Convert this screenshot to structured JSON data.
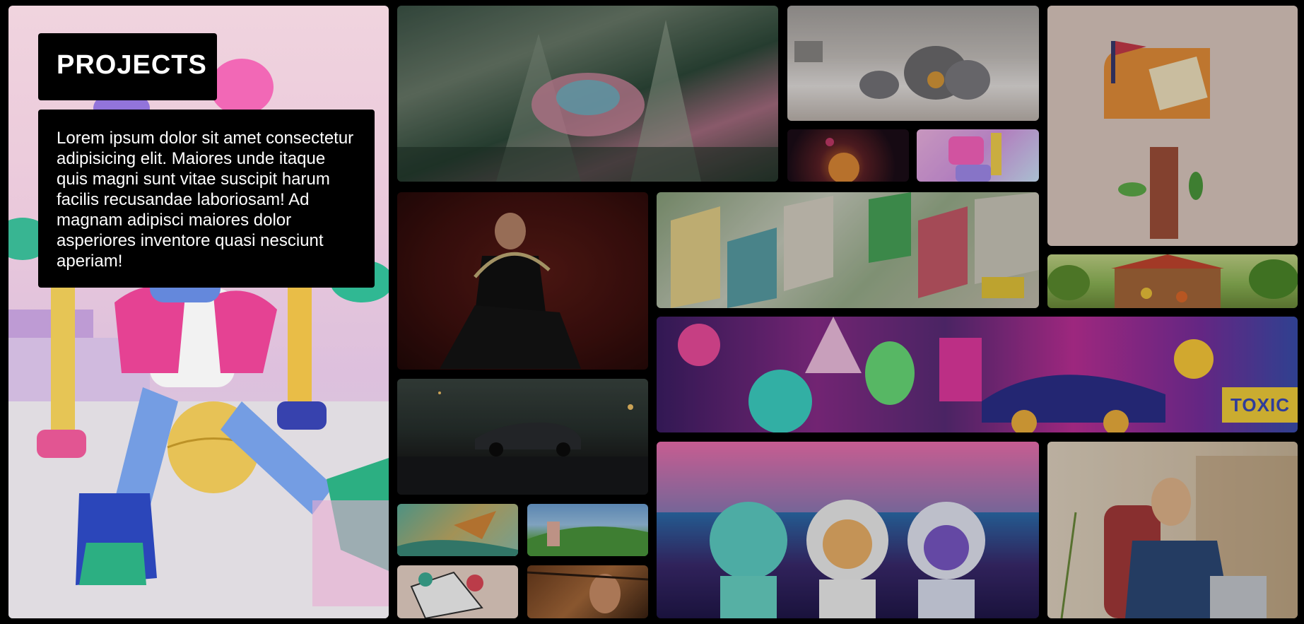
{
  "hero": {
    "title": "PROJECTS",
    "description": "Lorem ipsum dolor sit amet consectetur adipisicing elit. Maiores unde itaque quis magni sunt vitae suscipit harum facilis recusandae laboriosam! Ad magnam adipisci maiores dolor asperiores inventore quasi nesciunt aperiam!"
  },
  "gallery": {
    "graffiti_sign": "TOXIC"
  },
  "colors": {
    "page_background": "#000000",
    "hero_background": "#fde0ea",
    "text_panel": "#000000",
    "text": "#ffffff"
  }
}
